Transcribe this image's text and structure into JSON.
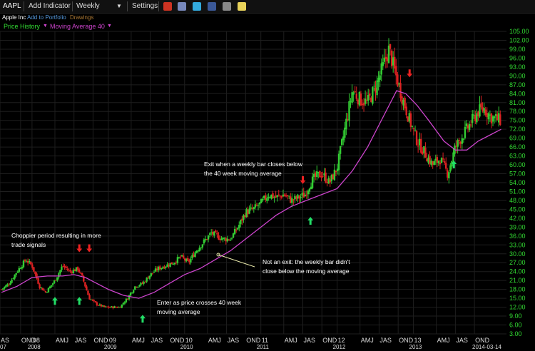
{
  "toolbar": {
    "symbol": "AAPL",
    "add_indicator": "Add Indicator",
    "period": "Weekly",
    "settings": "Settings",
    "period_arrow": "▼"
  },
  "subheader": {
    "company": "Apple Inc",
    "add_portfolio": "Add to Portfolio",
    "drawings": "Drawings"
  },
  "indicators": {
    "price": "Price History",
    "ma": "Moving Average 40",
    "arrow": "▼"
  },
  "colors": {
    "up": "#33cc33",
    "down": "#dd2222",
    "ma": "#cc44cc",
    "axis": "#33dd33",
    "annot": "#ffffff",
    "arrow_green": "#22dd66",
    "arrow_red": "#ee2222"
  },
  "chart_data": {
    "type": "candlestick",
    "ylim": [
      3,
      105
    ],
    "ytick_labels": [
      "3.00",
      "6.00",
      "9.00",
      "12.00",
      "15.00",
      "18.00",
      "21.00",
      "24.00",
      "27.00",
      "30.00",
      "33.00",
      "36.00",
      "39.00",
      "42.00",
      "45.00",
      "48.00",
      "51.00",
      "54.00",
      "57.00",
      "60.00",
      "63.00",
      "66.00",
      "69.00",
      "72.00",
      "75.00",
      "78.00",
      "81.00",
      "84.00",
      "87.00",
      "90.00",
      "93.00",
      "96.00",
      "99.00",
      "102.00",
      "105.00"
    ],
    "xlim": [
      2007.58,
      2014.22
    ],
    "xticks": [
      {
        "t": 2007.58,
        "label": "AS"
      },
      {
        "t": 2007.85,
        "label": "OND"
      },
      {
        "t": 2008.0,
        "label": "08"
      },
      {
        "t": 2008.3,
        "label": "AMJ"
      },
      {
        "t": 2008.55,
        "label": "JAS"
      },
      {
        "t": 2008.8,
        "label": "OND"
      },
      {
        "t": 2009.0,
        "label": "09"
      },
      {
        "t": 2009.3,
        "label": "AMJ"
      },
      {
        "t": 2009.55,
        "label": "JAS"
      },
      {
        "t": 2009.8,
        "label": "OND"
      },
      {
        "t": 2010.0,
        "label": "10"
      },
      {
        "t": 2010.3,
        "label": "AMJ"
      },
      {
        "t": 2010.55,
        "label": "JAS"
      },
      {
        "t": 2010.8,
        "label": "OND"
      },
      {
        "t": 2011.0,
        "label": "11"
      },
      {
        "t": 2011.3,
        "label": "AMJ"
      },
      {
        "t": 2011.55,
        "label": "JAS"
      },
      {
        "t": 2011.8,
        "label": "OND"
      },
      {
        "t": 2012.0,
        "label": "12"
      },
      {
        "t": 2012.3,
        "label": "AMJ"
      },
      {
        "t": 2012.55,
        "label": "JAS"
      },
      {
        "t": 2012.8,
        "label": "OND"
      },
      {
        "t": 2013.0,
        "label": "13"
      },
      {
        "t": 2013.3,
        "label": "AMJ"
      },
      {
        "t": 2013.55,
        "label": "JAS"
      },
      {
        "t": 2013.8,
        "label": "OND"
      }
    ],
    "xlabel_left": "07",
    "year_labels": [
      {
        "t": 2008.0,
        "label": "2008"
      },
      {
        "t": 2009.0,
        "label": "2009"
      },
      {
        "t": 2010.0,
        "label": "2010"
      },
      {
        "t": 2011.0,
        "label": "2011"
      },
      {
        "t": 2012.0,
        "label": "2012"
      },
      {
        "t": 2013.0,
        "label": "2013"
      }
    ],
    "date_label": "2014-03-14",
    "price_close": [
      {
        "t": 2007.6,
        "v": 18
      },
      {
        "t": 2007.7,
        "v": 20
      },
      {
        "t": 2007.8,
        "v": 24
      },
      {
        "t": 2007.92,
        "v": 28
      },
      {
        "t": 2008.0,
        "v": 26
      },
      {
        "t": 2008.1,
        "v": 19
      },
      {
        "t": 2008.18,
        "v": 17
      },
      {
        "t": 2008.3,
        "v": 21
      },
      {
        "t": 2008.4,
        "v": 26
      },
      {
        "t": 2008.5,
        "v": 24
      },
      {
        "t": 2008.6,
        "v": 25
      },
      {
        "t": 2008.66,
        "v": 22
      },
      {
        "t": 2008.75,
        "v": 15
      },
      {
        "t": 2008.85,
        "v": 13
      },
      {
        "t": 2008.95,
        "v": 12
      },
      {
        "t": 2009.05,
        "v": 12
      },
      {
        "t": 2009.15,
        "v": 12
      },
      {
        "t": 2009.25,
        "v": 15
      },
      {
        "t": 2009.35,
        "v": 19
      },
      {
        "t": 2009.45,
        "v": 20
      },
      {
        "t": 2009.55,
        "v": 23
      },
      {
        "t": 2009.65,
        "v": 25
      },
      {
        "t": 2009.75,
        "v": 26
      },
      {
        "t": 2009.85,
        "v": 27
      },
      {
        "t": 2009.95,
        "v": 29
      },
      {
        "t": 2010.05,
        "v": 27
      },
      {
        "t": 2010.15,
        "v": 31
      },
      {
        "t": 2010.25,
        "v": 34
      },
      {
        "t": 2010.35,
        "v": 37
      },
      {
        "t": 2010.42,
        "v": 36
      },
      {
        "t": 2010.5,
        "v": 35
      },
      {
        "t": 2010.6,
        "v": 35
      },
      {
        "t": 2010.7,
        "v": 39
      },
      {
        "t": 2010.8,
        "v": 44
      },
      {
        "t": 2010.9,
        "v": 45
      },
      {
        "t": 2011.0,
        "v": 47
      },
      {
        "t": 2011.1,
        "v": 50
      },
      {
        "t": 2011.2,
        "v": 49
      },
      {
        "t": 2011.3,
        "v": 50
      },
      {
        "t": 2011.4,
        "v": 48
      },
      {
        "t": 2011.5,
        "v": 49
      },
      {
        "t": 2011.58,
        "v": 50
      },
      {
        "t": 2011.65,
        "v": 54
      },
      {
        "t": 2011.72,
        "v": 56
      },
      {
        "t": 2011.8,
        "v": 57
      },
      {
        "t": 2011.9,
        "v": 54
      },
      {
        "t": 2012.0,
        "v": 59
      },
      {
        "t": 2012.1,
        "v": 72
      },
      {
        "t": 2012.2,
        "v": 85
      },
      {
        "t": 2012.3,
        "v": 82
      },
      {
        "t": 2012.4,
        "v": 81
      },
      {
        "t": 2012.5,
        "v": 86
      },
      {
        "t": 2012.6,
        "v": 93
      },
      {
        "t": 2012.68,
        "v": 99
      },
      {
        "t": 2012.75,
        "v": 92
      },
      {
        "t": 2012.85,
        "v": 83
      },
      {
        "t": 2012.95,
        "v": 75
      },
      {
        "t": 2013.05,
        "v": 68
      },
      {
        "t": 2013.15,
        "v": 64
      },
      {
        "t": 2013.25,
        "v": 60
      },
      {
        "t": 2013.35,
        "v": 62
      },
      {
        "t": 2013.45,
        "v": 57
      },
      {
        "t": 2013.55,
        "v": 66
      },
      {
        "t": 2013.65,
        "v": 70
      },
      {
        "t": 2013.75,
        "v": 74
      },
      {
        "t": 2013.85,
        "v": 78
      },
      {
        "t": 2013.93,
        "v": 79
      },
      {
        "t": 2014.02,
        "v": 76
      },
      {
        "t": 2014.15,
        "v": 75
      }
    ],
    "moving_average_40": [
      {
        "t": 2007.6,
        "v": 17
      },
      {
        "t": 2007.8,
        "v": 19
      },
      {
        "t": 2008.0,
        "v": 22
      },
      {
        "t": 2008.2,
        "v": 22.5
      },
      {
        "t": 2008.4,
        "v": 22.5
      },
      {
        "t": 2008.55,
        "v": 23
      },
      {
        "t": 2008.7,
        "v": 22
      },
      {
        "t": 2008.85,
        "v": 20
      },
      {
        "t": 2009.0,
        "v": 18
      },
      {
        "t": 2009.2,
        "v": 16
      },
      {
        "t": 2009.4,
        "v": 15
      },
      {
        "t": 2009.6,
        "v": 17
      },
      {
        "t": 2009.8,
        "v": 20
      },
      {
        "t": 2010.0,
        "v": 23
      },
      {
        "t": 2010.2,
        "v": 25
      },
      {
        "t": 2010.4,
        "v": 28
      },
      {
        "t": 2010.6,
        "v": 31
      },
      {
        "t": 2010.8,
        "v": 35
      },
      {
        "t": 2011.0,
        "v": 39
      },
      {
        "t": 2011.2,
        "v": 43
      },
      {
        "t": 2011.4,
        "v": 46
      },
      {
        "t": 2011.6,
        "v": 48
      },
      {
        "t": 2011.8,
        "v": 50
      },
      {
        "t": 2012.0,
        "v": 52
      },
      {
        "t": 2012.2,
        "v": 58
      },
      {
        "t": 2012.4,
        "v": 66
      },
      {
        "t": 2012.6,
        "v": 76
      },
      {
        "t": 2012.78,
        "v": 85
      },
      {
        "t": 2012.9,
        "v": 84
      },
      {
        "t": 2013.05,
        "v": 80
      },
      {
        "t": 2013.2,
        "v": 75
      },
      {
        "t": 2013.4,
        "v": 68
      },
      {
        "t": 2013.55,
        "v": 65
      },
      {
        "t": 2013.7,
        "v": 65
      },
      {
        "t": 2013.85,
        "v": 68
      },
      {
        "t": 2014.0,
        "v": 70
      },
      {
        "t": 2014.15,
        "v": 72
      }
    ],
    "annotations": [
      {
        "id": "choppier",
        "lines": [
          "Choppier period resulting in more",
          "trade signals"
        ]
      },
      {
        "id": "exit",
        "lines": [
          "Exit when a weekly bar closes below",
          "the 40 week moving average"
        ]
      },
      {
        "id": "notexit",
        "lines": [
          "Not an exit: the weekly bar didn't",
          "close below the moving average"
        ]
      },
      {
        "id": "enter",
        "lines": [
          "Enter as price crosses 40 week",
          "moving average"
        ]
      }
    ],
    "arrows": [
      {
        "dir": "up",
        "color": "green",
        "t": 2008.3,
        "v": 14
      },
      {
        "dir": "up",
        "color": "green",
        "t": 2008.62,
        "v": 14
      },
      {
        "dir": "down",
        "color": "red",
        "t": 2008.62,
        "v": 32
      },
      {
        "dir": "down",
        "color": "red",
        "t": 2008.75,
        "v": 32
      },
      {
        "dir": "up",
        "color": "green",
        "t": 2009.45,
        "v": 8
      },
      {
        "dir": "down",
        "color": "red",
        "t": 2011.55,
        "v": 55
      },
      {
        "dir": "up",
        "color": "green",
        "t": 2011.65,
        "v": 41
      },
      {
        "dir": "down",
        "color": "red",
        "t": 2012.95,
        "v": 91
      },
      {
        "dir": "up",
        "color": "green",
        "t": 2013.53,
        "v": 60
      }
    ]
  }
}
